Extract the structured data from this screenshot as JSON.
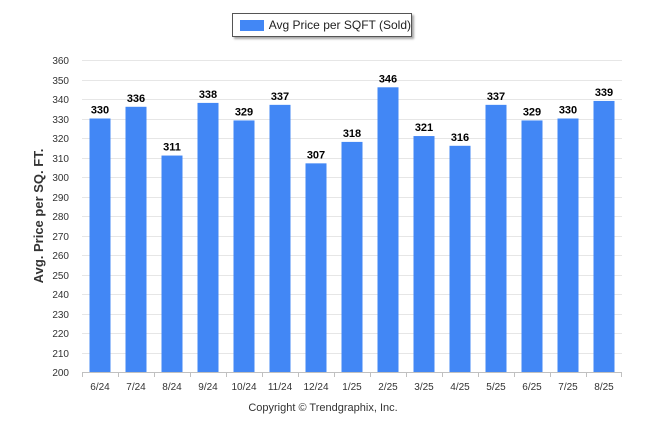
{
  "chart_data": {
    "type": "bar",
    "ylabel": "Avg. Price per SQ. FT.",
    "categories": [
      "6/24",
      "7/24",
      "8/24",
      "9/24",
      "10/24",
      "11/24",
      "12/24",
      "1/25",
      "2/25",
      "3/25",
      "4/25",
      "5/25",
      "6/25",
      "7/25",
      "8/25"
    ],
    "series": [
      {
        "name": "Avg Price per SQFT (Sold)",
        "values": [
          330,
          336,
          311,
          338,
          329,
          337,
          307,
          318,
          346,
          321,
          316,
          337,
          329,
          330,
          339
        ],
        "color": "#4287f5"
      }
    ],
    "ylim": [
      200,
      360
    ],
    "yticks": [
      200,
      210,
      220,
      230,
      240,
      250,
      260,
      270,
      280,
      290,
      300,
      310,
      320,
      330,
      340,
      350,
      360
    ],
    "grid": true,
    "legend_position": "top-center",
    "data_labels": true
  },
  "footer": {
    "copyright": "Copyright © Trendgraphix, Inc."
  }
}
